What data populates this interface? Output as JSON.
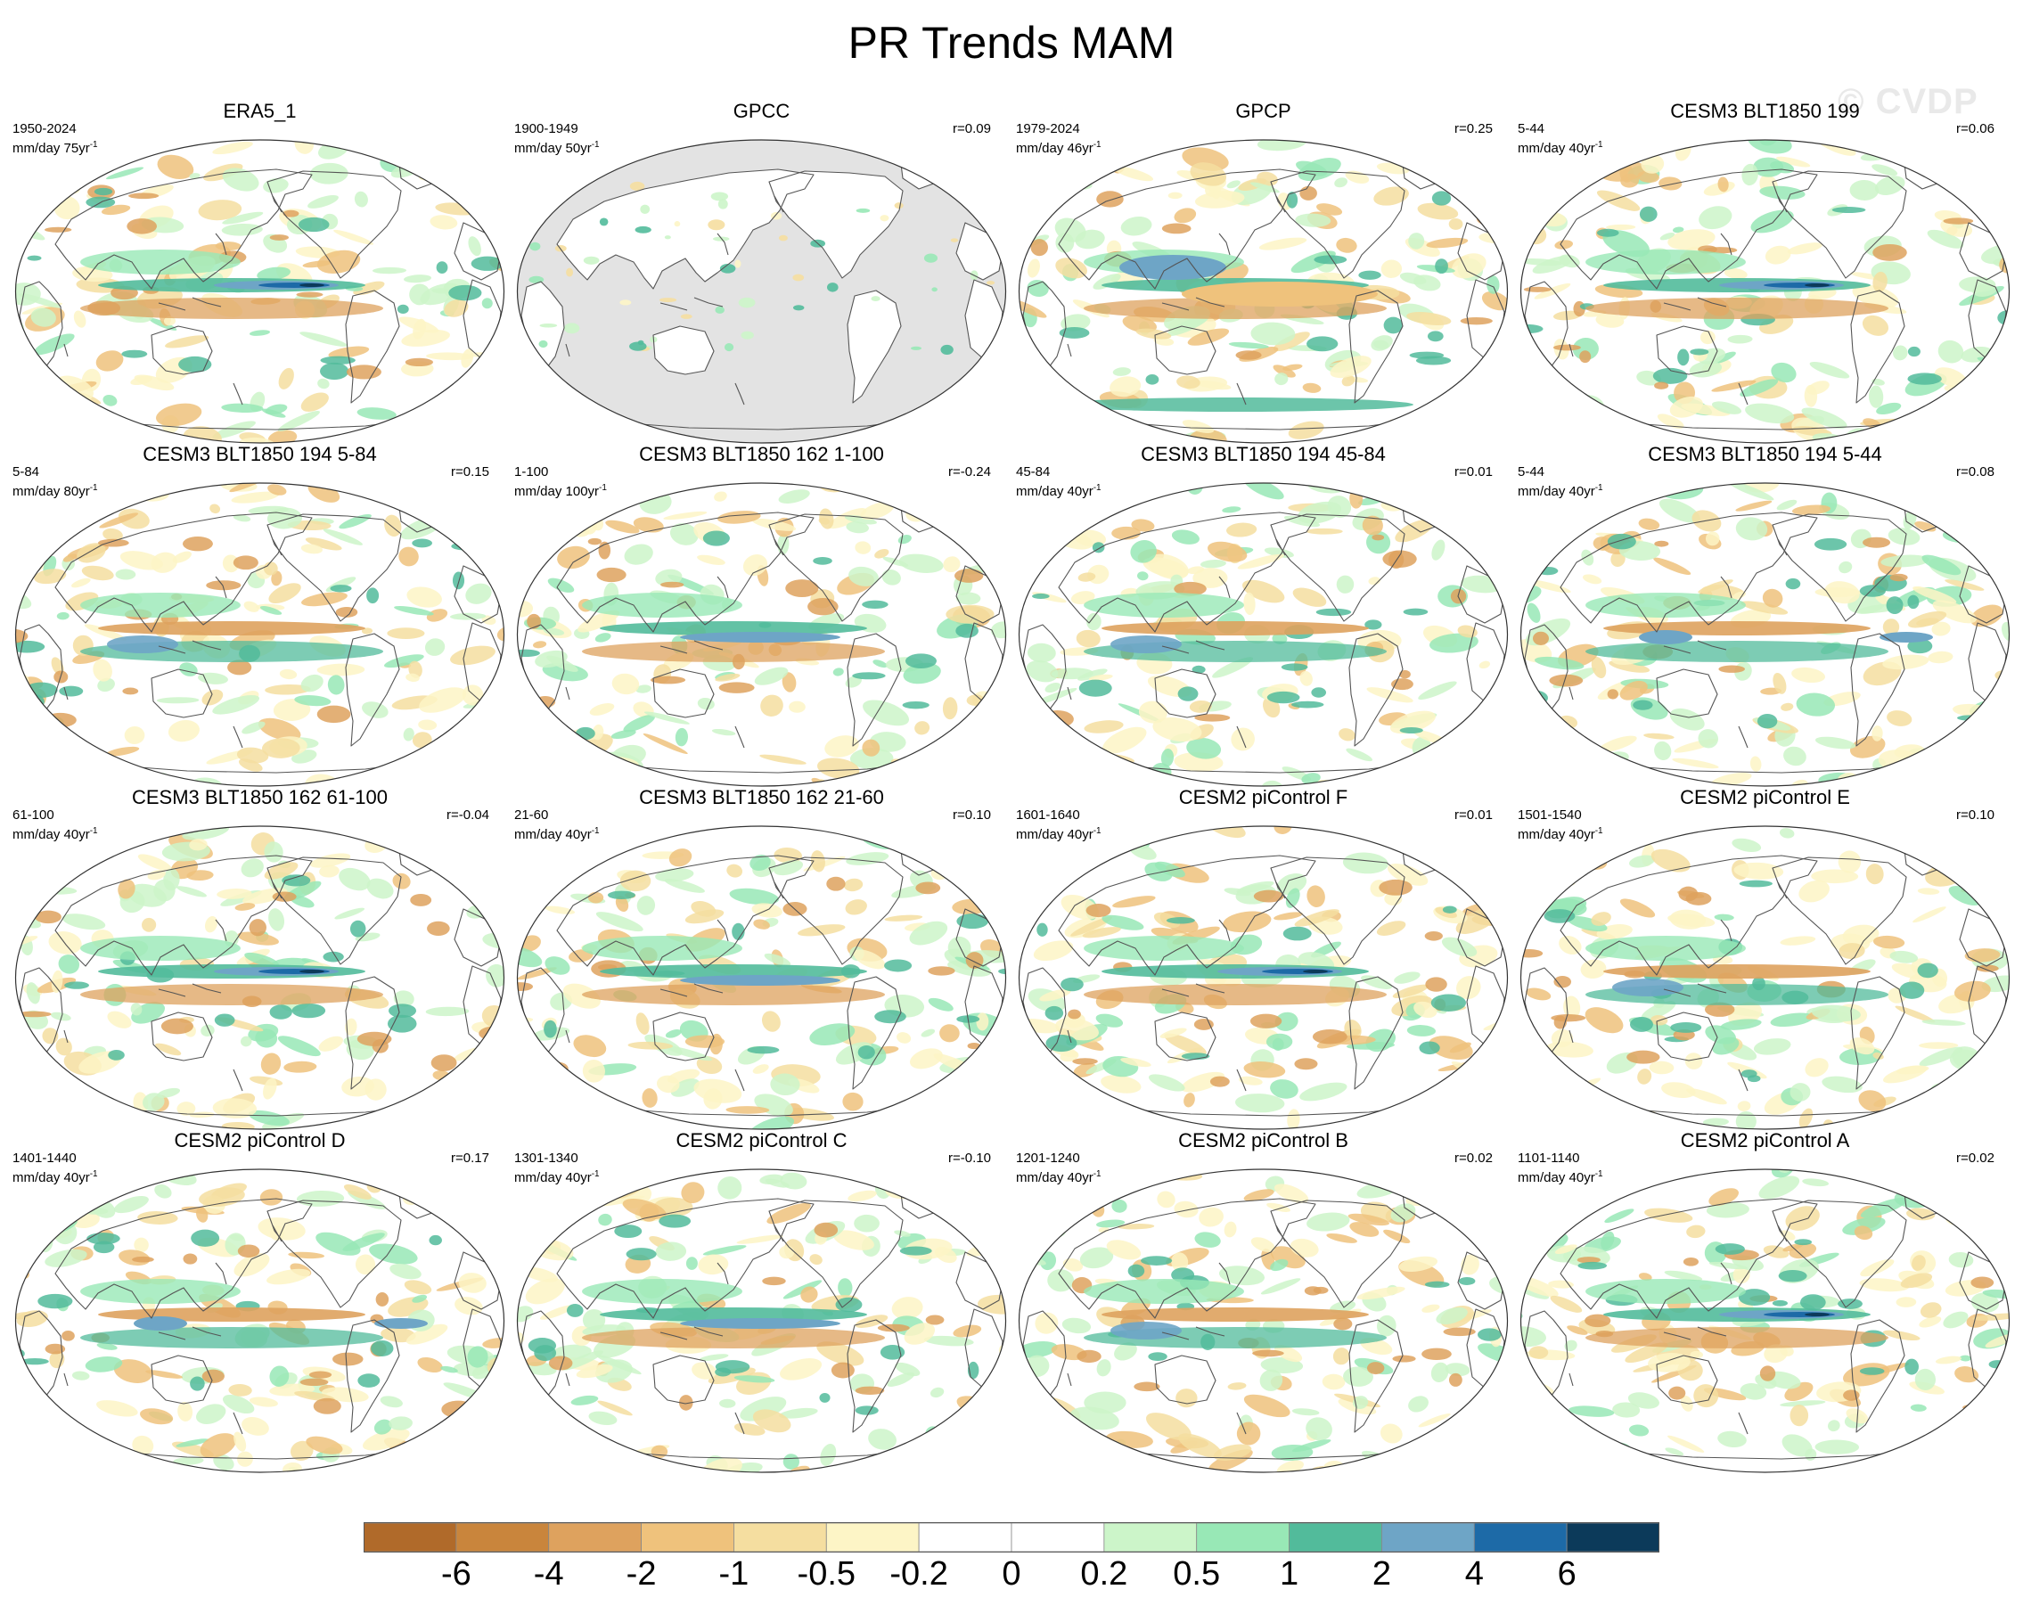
{
  "title": "PR Trends MAM",
  "watermark": "© CVDP",
  "panels": [
    {
      "title": "ERA5_1",
      "years": "1950-2024",
      "units": "mm/day 75yr",
      "r": "",
      "style": "era5"
    },
    {
      "title": "GPCC",
      "years": "1900-1949",
      "units": "mm/day 50yr",
      "r": "r=0.09",
      "style": "gpcc"
    },
    {
      "title": "GPCP",
      "years": "1979-2024",
      "units": "mm/day 46yr",
      "r": "r=0.25",
      "style": "gpcp"
    },
    {
      "title": "CESM3 BLT1850 199",
      "years": "5-44",
      "units": "mm/day 40yr",
      "r": "r=0.06",
      "style": "a"
    },
    {
      "title": "CESM3 BLT1850 194 5-84",
      "years": "5-84",
      "units": "mm/day 80yr",
      "r": "r=0.15",
      "style": "b"
    },
    {
      "title": "CESM3 BLT1850 162 1-100",
      "years": "1-100",
      "units": "mm/day 100yr",
      "r": "r=-0.24",
      "style": "c"
    },
    {
      "title": "CESM3 BLT1850 194 45-84",
      "years": "45-84",
      "units": "mm/day 40yr",
      "r": "r=0.01",
      "style": "b"
    },
    {
      "title": "CESM3 BLT1850 194 5-44",
      "years": "5-44",
      "units": "mm/day 40yr",
      "r": "r=0.08",
      "style": "d"
    },
    {
      "title": "CESM3 BLT1850 162 61-100",
      "years": "61-100",
      "units": "mm/day 40yr",
      "r": "r=-0.04",
      "style": "a"
    },
    {
      "title": "CESM3 BLT1850 162 21-60",
      "years": "21-60",
      "units": "mm/day 40yr",
      "r": "r=0.10",
      "style": "c"
    },
    {
      "title": "CESM2 piControl F",
      "years": "1601-1640",
      "units": "mm/day 40yr",
      "r": "r=0.01",
      "style": "a"
    },
    {
      "title": "CESM2 piControl E",
      "years": "1501-1540",
      "units": "mm/day 40yr",
      "r": "r=0.10",
      "style": "b"
    },
    {
      "title": "CESM2 piControl D",
      "years": "1401-1440",
      "units": "mm/day 40yr",
      "r": "r=0.17",
      "style": "d"
    },
    {
      "title": "CESM2 piControl C",
      "years": "1301-1340",
      "units": "mm/day 40yr",
      "r": "r=-0.10",
      "style": "c"
    },
    {
      "title": "CESM2 piControl B",
      "years": "1201-1240",
      "units": "mm/day 40yr",
      "r": "r=0.02",
      "style": "b"
    },
    {
      "title": "CESM2 piControl A",
      "years": "1101-1140",
      "units": "mm/day 40yr",
      "r": "r=0.02",
      "style": "a"
    }
  ],
  "colorbar": {
    "colors": [
      "#b06a2a",
      "#c9853c",
      "#dea25e",
      "#efc27c",
      "#f5dea0",
      "#fdf5c6",
      "#ffffff",
      "#ffffff",
      "#ccf5c9",
      "#98e8b6",
      "#52bb9b",
      "#6ea5c6",
      "#1d6aa7",
      "#0c3a5a"
    ],
    "labels": [
      "-6",
      "-4",
      "-2",
      "-1",
      "-0.5",
      "-0.2",
      "0",
      "0.2",
      "0.5",
      "1",
      "2",
      "4",
      "6"
    ]
  },
  "palette": {
    "brown_dark": "#c9853c",
    "brown": "#dea25e",
    "tan": "#efc27c",
    "sand": "#f5dea0",
    "cream": "#fdf5c6",
    "mint": "#ccf5c9",
    "green_light": "#98e8b6",
    "teal": "#52bb9b",
    "steel": "#6ea5c6",
    "blue": "#1d6aa7",
    "navy": "#0c3a5a",
    "land_mask": "#e3e3e3",
    "outline": "#555555"
  }
}
